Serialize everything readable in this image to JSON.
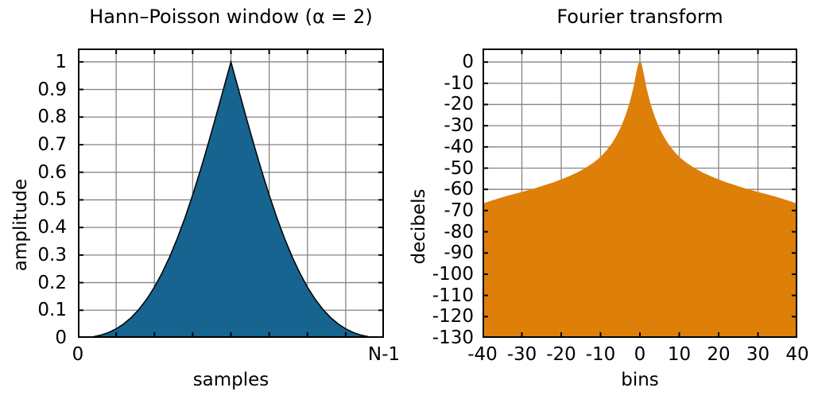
{
  "styles": {
    "background": "#ffffff",
    "grid_color": "#858585",
    "axis_color": "#000000",
    "text_color": "#000000",
    "window_fill": "#16648f",
    "spectrum_fill": "#de7f0a"
  },
  "chart_data": [
    {
      "type": "area",
      "title": "Hann–Poisson window (α = 2)",
      "xlabel": "samples",
      "ylabel": "amplitude",
      "xlim": [
        0,
        1
      ],
      "ylim": [
        0,
        1.0485
      ],
      "baseline": 0,
      "grid": true,
      "grid_x": [
        0.125,
        0.25,
        0.375,
        0.5,
        0.625,
        0.75,
        0.875
      ],
      "grid_y": [
        0.1,
        0.2,
        0.3,
        0.4,
        0.5,
        0.6,
        0.7,
        0.8,
        0.9,
        1
      ],
      "x_tick_labels": [
        {
          "v": 0,
          "label": "0"
        },
        {
          "v": 1,
          "label": "N-1"
        }
      ],
      "y_tick_labels": [
        {
          "v": 0,
          "label": "0"
        },
        {
          "v": 0.1,
          "label": "0.1"
        },
        {
          "v": 0.2,
          "label": "0.2"
        },
        {
          "v": 0.3,
          "label": "0.3"
        },
        {
          "v": 0.4,
          "label": "0.4"
        },
        {
          "v": 0.5,
          "label": "0.5"
        },
        {
          "v": 0.6,
          "label": "0.6"
        },
        {
          "v": 0.7,
          "label": "0.7"
        },
        {
          "v": 0.8,
          "label": "0.8"
        },
        {
          "v": 0.9,
          "label": "0.9"
        },
        {
          "v": 1,
          "label": "1"
        }
      ],
      "fill_color": "#16648f",
      "line_color": "#000000",
      "line_width": 1.5,
      "x": [
        0,
        0.025,
        0.05,
        0.075,
        0.1,
        0.125,
        0.15,
        0.175,
        0.2,
        0.225,
        0.25,
        0.275,
        0.3,
        0.325,
        0.35,
        0.375,
        0.4,
        0.425,
        0.45,
        0.475,
        0.5,
        0.525,
        0.55,
        0.575,
        0.6,
        0.625,
        0.65,
        0.675,
        0.7,
        0.725,
        0.75,
        0.775,
        0.8,
        0.825,
        0.85,
        0.875,
        0.9,
        0.925,
        0.95,
        0.975,
        1
      ],
      "y": [
        0,
        0.0009,
        0.004,
        0.01,
        0.0193,
        0.0327,
        0.0508,
        0.0744,
        0.1041,
        0.1404,
        0.1839,
        0.2351,
        0.2941,
        0.361,
        0.4357,
        0.5177,
        0.6063,
        0.7004,
        0.7987,
        0.8992,
        1,
        0.8992,
        0.7987,
        0.7004,
        0.6063,
        0.5177,
        0.4357,
        0.361,
        0.2941,
        0.2351,
        0.1839,
        0.1404,
        0.1041,
        0.0744,
        0.0508,
        0.0327,
        0.0193,
        0.01,
        0.004,
        0.0009,
        0
      ]
    },
    {
      "type": "area",
      "title": "Fourier transform",
      "xlabel": "bins",
      "ylabel": "decibels",
      "xlim": [
        -40,
        40
      ],
      "ylim": [
        -130,
        6.4
      ],
      "baseline": -130,
      "grid": true,
      "grid_x": [
        -30,
        -20,
        -10,
        0,
        10,
        20,
        30
      ],
      "grid_y": [
        -120,
        -110,
        -100,
        -90,
        -80,
        -70,
        -60,
        -50,
        -40,
        -30,
        -20,
        -10,
        0
      ],
      "x_tick_labels": [
        {
          "v": -40,
          "label": "-40"
        },
        {
          "v": -30,
          "label": "-30"
        },
        {
          "v": -20,
          "label": "-20"
        },
        {
          "v": -10,
          "label": "-10"
        },
        {
          "v": 0,
          "label": "0"
        },
        {
          "v": 10,
          "label": "10"
        },
        {
          "v": 20,
          "label": "20"
        },
        {
          "v": 30,
          "label": "30"
        },
        {
          "v": 40,
          "label": "40"
        }
      ],
      "y_tick_labels": [
        {
          "v": 0,
          "label": "0"
        },
        {
          "v": -10,
          "label": "-10"
        },
        {
          "v": -20,
          "label": "-20"
        },
        {
          "v": -30,
          "label": "-30"
        },
        {
          "v": -40,
          "label": "-40"
        },
        {
          "v": -50,
          "label": "-50"
        },
        {
          "v": -60,
          "label": "-60"
        },
        {
          "v": -70,
          "label": "-70"
        },
        {
          "v": -80,
          "label": "-80"
        },
        {
          "v": -90,
          "label": "-90"
        },
        {
          "v": -100,
          "label": "-100"
        },
        {
          "v": -110,
          "label": "-110"
        },
        {
          "v": -120,
          "label": "-120"
        },
        {
          "v": -130,
          "label": "-130"
        }
      ],
      "fill_color": "#de7f0a",
      "line_color": "#de7f0a",
      "line_width": 1,
      "x": [
        -40,
        -39,
        -38,
        -36,
        -34,
        -32,
        -30,
        -28,
        -26,
        -24,
        -22,
        -20,
        -18,
        -16,
        -14,
        -12,
        -11,
        -10,
        -9,
        -8,
        -7,
        -6,
        -5,
        -4.5,
        -4,
        -3.5,
        -3,
        -2.5,
        -2,
        -1.5,
        -1.25,
        -1,
        -0.75,
        -0.5,
        -0.25,
        0,
        0.25,
        0.5,
        0.75,
        1,
        1.25,
        1.5,
        2,
        2.5,
        3,
        3.5,
        4,
        4.5,
        5,
        6,
        7,
        8,
        9,
        10,
        11,
        12,
        14,
        16,
        18,
        20,
        22,
        24,
        26,
        28,
        30,
        32,
        34,
        36,
        38,
        39,
        40
      ],
      "y": [
        -67,
        -66.3,
        -65.7,
        -64.5,
        -63.4,
        -62.4,
        -61.4,
        -60.4,
        -59.3,
        -58.1,
        -56.9,
        -55.5,
        -54,
        -52.3,
        -50.3,
        -47.9,
        -46.5,
        -44.9,
        -43,
        -40.8,
        -38.3,
        -35.3,
        -31.7,
        -29.6,
        -27.3,
        -24.8,
        -22,
        -19,
        -15.5,
        -11.5,
        -9.2,
        -6.8,
        -4.4,
        -2.3,
        -0.6,
        0,
        -0.6,
        -2.3,
        -4.4,
        -6.8,
        -9.2,
        -11.5,
        -15.5,
        -19,
        -22,
        -24.8,
        -27.3,
        -29.6,
        -31.7,
        -35.3,
        -38.3,
        -40.8,
        -43,
        -44.9,
        -46.5,
        -47.9,
        -50.3,
        -52.3,
        -54,
        -55.5,
        -56.9,
        -58.1,
        -59.3,
        -60.4,
        -61.4,
        -62.4,
        -63.4,
        -64.5,
        -65.7,
        -66.3,
        -67
      ]
    }
  ]
}
